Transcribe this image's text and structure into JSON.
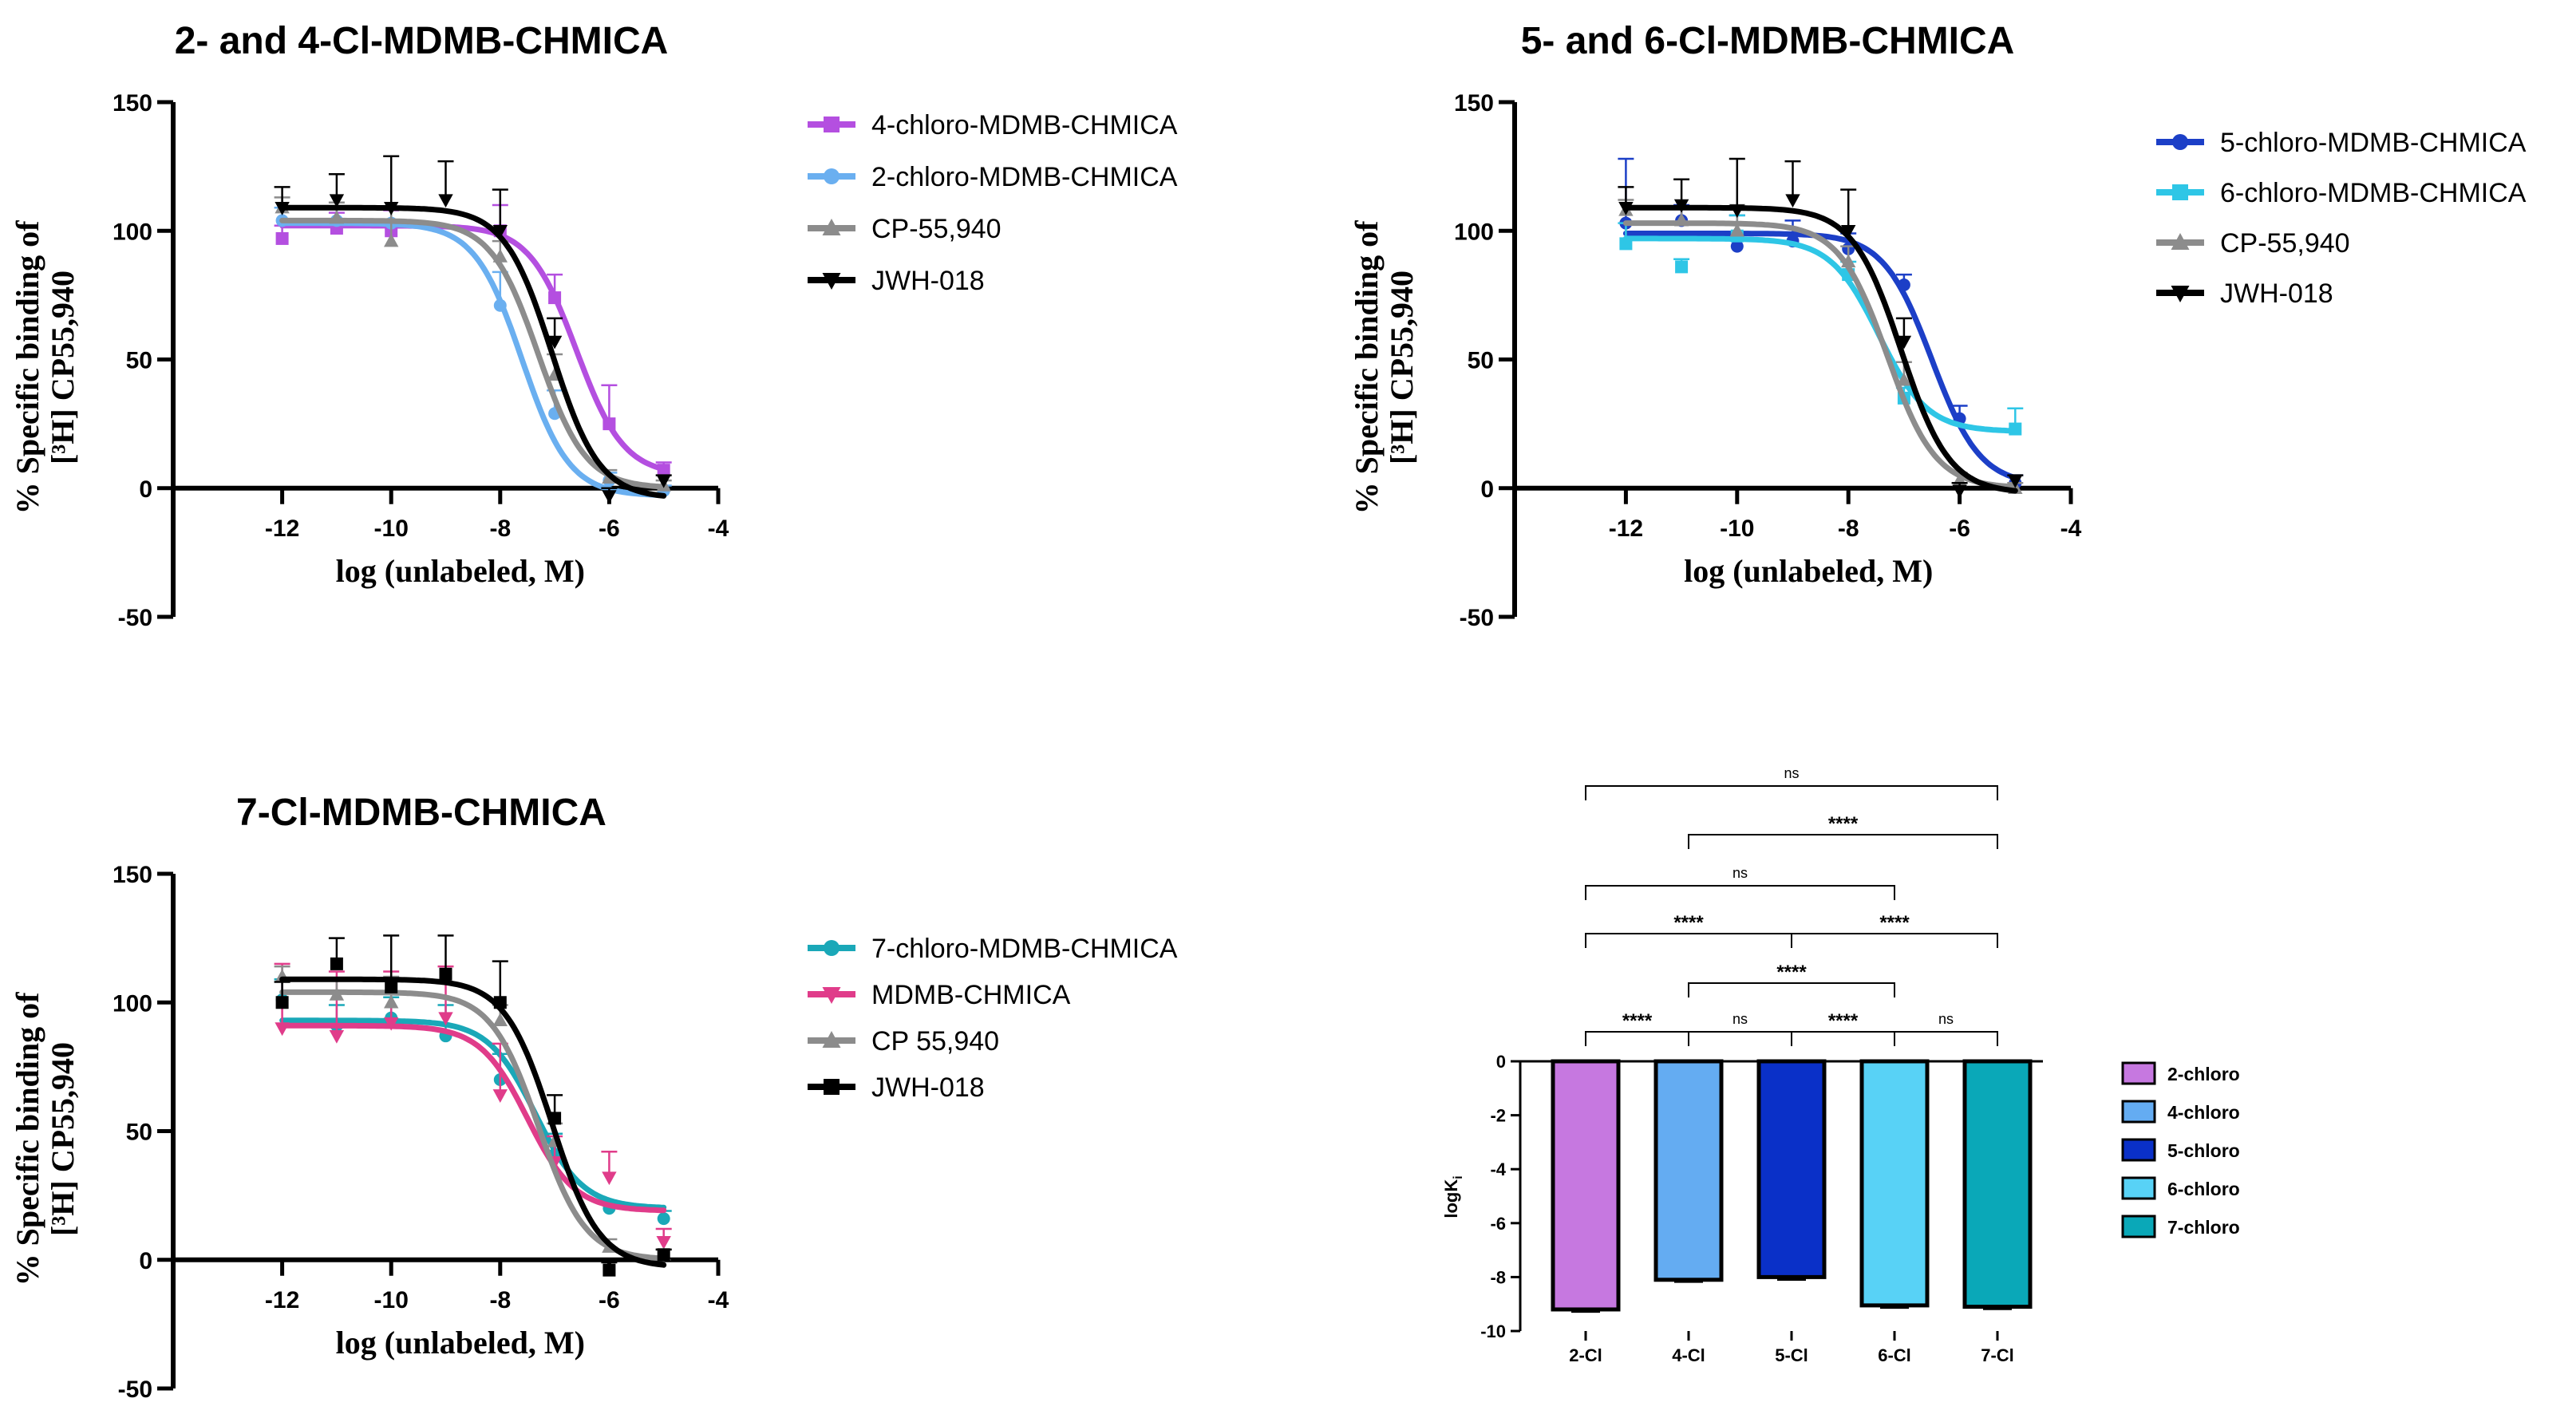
{
  "chart_data": [
    {
      "type": "line",
      "title": "2- and 4-Cl-MDMB-CHMICA",
      "xlabel": "log (unlabeled, M)",
      "ylabel_line1": "% Specific binding of",
      "ylabel_line2": "[³H] CP55,940",
      "xlim": [
        -14,
        -4
      ],
      "ylim": [
        -50,
        150
      ],
      "xticks": [
        -12,
        -10,
        -8,
        -6,
        -4
      ],
      "yticks": [
        150,
        100,
        50,
        0,
        -50
      ],
      "series": [
        {
          "name": "4-chloro-MDMB-CHMICA",
          "color": "#b44fe0",
          "marker": "square",
          "top": 102,
          "bottom": 5,
          "logec50": -6.6,
          "points": [
            {
              "x": -12,
              "y": 97,
              "err": 5
            },
            {
              "x": -11,
              "y": 101,
              "err": 6
            },
            {
              "x": -10,
              "y": 100,
              "err": 8
            },
            {
              "x": -8,
              "y": 100,
              "err": 10
            },
            {
              "x": -7,
              "y": 74,
              "err": 9
            },
            {
              "x": -6,
              "y": 25,
              "err": 15
            },
            {
              "x": -5,
              "y": 7,
              "err": 3
            }
          ]
        },
        {
          "name": "2-chloro-MDMB-CHMICA",
          "color": "#6aaff0",
          "marker": "circle",
          "top": 103,
          "bottom": -3,
          "logec50": -7.6,
          "points": [
            {
              "x": -12,
              "y": 104,
              "err": 5
            },
            {
              "x": -11,
              "y": 104,
              "err": 5
            },
            {
              "x": -10,
              "y": 103,
              "err": 6
            },
            {
              "x": -8,
              "y": 71,
              "err": 13
            },
            {
              "x": -7,
              "y": 29,
              "err": 9
            },
            {
              "x": -6,
              "y": 3,
              "err": 3
            },
            {
              "x": -5,
              "y": -1,
              "err": 2
            }
          ]
        },
        {
          "name": "CP-55,940",
          "color": "#8c8c8c",
          "marker": "triangle-up",
          "top": 104,
          "bottom": 0,
          "logec50": -7.3,
          "points": [
            {
              "x": -12,
              "y": 109,
              "err": 4
            },
            {
              "x": -11,
              "y": 105,
              "err": 6
            },
            {
              "x": -10,
              "y": 96,
              "err": 13
            },
            {
              "x": -8,
              "y": 90,
              "err": 6
            },
            {
              "x": -7,
              "y": 44,
              "err": 8
            },
            {
              "x": -6,
              "y": 4,
              "err": 3
            },
            {
              "x": -5,
              "y": 1,
              "err": 2
            }
          ]
        },
        {
          "name": "JWH-018",
          "color": "#000000",
          "marker": "triangle-down",
          "top": 109,
          "bottom": -4,
          "logec50": -7.05,
          "points": [
            {
              "x": -12,
              "y": 109,
              "err": 8
            },
            {
              "x": -11,
              "y": 112,
              "err": 10
            },
            {
              "x": -10,
              "y": 109,
              "err": 20
            },
            {
              "x": -9,
              "y": 112,
              "err": 15
            },
            {
              "x": -8,
              "y": 100,
              "err": 16
            },
            {
              "x": -7,
              "y": 57,
              "err": 9
            },
            {
              "x": -6,
              "y": -3,
              "err": 3
            },
            {
              "x": -5,
              "y": 3,
              "err": 2
            }
          ]
        }
      ]
    },
    {
      "type": "line",
      "title": "5- and 6-Cl-MDMB-CHMICA",
      "xlabel": "log (unlabeled, M)",
      "ylabel_line1": "% Specific binding of",
      "ylabel_line2": "[³H] CP55,940",
      "xlim": [
        -14,
        -4
      ],
      "ylim": [
        -50,
        150
      ],
      "xticks": [
        -12,
        -10,
        -8,
        -6,
        -4
      ],
      "yticks": [
        150,
        100,
        50,
        0,
        -50
      ],
      "series": [
        {
          "name": "5-chloro-MDMB-CHMICA",
          "color": "#1c3fc7",
          "marker": "circle",
          "top": 99,
          "bottom": 1,
          "logec50": -6.5,
          "points": [
            {
              "x": -12,
              "y": 103,
              "err": 25
            },
            {
              "x": -11,
              "y": 104,
              "err": 6
            },
            {
              "x": -10,
              "y": 94,
              "err": 12
            },
            {
              "x": -9,
              "y": 96,
              "err": 8
            },
            {
              "x": -8,
              "y": 93,
              "err": 6
            },
            {
              "x": -7,
              "y": 79,
              "err": 4
            },
            {
              "x": -6,
              "y": 27,
              "err": 5
            },
            {
              "x": -5,
              "y": 2,
              "err": 3
            }
          ]
        },
        {
          "name": "6-chloro-MDMB-CHMICA",
          "color": "#2ec6e6",
          "marker": "square",
          "top": 97,
          "bottom": 22,
          "logec50": -7.45,
          "points": [
            {
              "x": -12,
              "y": 95,
              "err": 8
            },
            {
              "x": -11,
              "y": 86,
              "err": 3
            },
            {
              "x": -10,
              "y": 98,
              "err": 8
            },
            {
              "x": -8,
              "y": 83,
              "err": 5
            },
            {
              "x": -7,
              "y": 35,
              "err": 4
            },
            {
              "x": -5,
              "y": 23,
              "err": 8
            }
          ]
        },
        {
          "name": "CP-55,940",
          "color": "#8c8c8c",
          "marker": "triangle-up",
          "top": 103,
          "bottom": 0,
          "logec50": -7.3,
          "points": [
            {
              "x": -12,
              "y": 108,
              "err": 4
            },
            {
              "x": -11,
              "y": 104,
              "err": 5
            },
            {
              "x": -10,
              "y": 100,
              "err": 10
            },
            {
              "x": -8,
              "y": 88,
              "err": 6
            },
            {
              "x": -7,
              "y": 42,
              "err": 7
            },
            {
              "x": -6,
              "y": 3,
              "err": 3
            },
            {
              "x": -5,
              "y": 0,
              "err": 2
            }
          ]
        },
        {
          "name": "JWH-018",
          "color": "#000000",
          "marker": "triangle-down",
          "top": 109,
          "bottom": -2,
          "logec50": -7.05,
          "points": [
            {
              "x": -12,
              "y": 109,
              "err": 8
            },
            {
              "x": -11,
              "y": 110,
              "err": 10
            },
            {
              "x": -10,
              "y": 108,
              "err": 20
            },
            {
              "x": -9,
              "y": 112,
              "err": 15
            },
            {
              "x": -8,
              "y": 100,
              "err": 16
            },
            {
              "x": -7,
              "y": 57,
              "err": 9
            },
            {
              "x": -6,
              "y": -1,
              "err": 3
            },
            {
              "x": -5,
              "y": 3,
              "err": 2
            }
          ]
        }
      ]
    },
    {
      "type": "line",
      "title": "7-Cl-MDMB-CHMICA",
      "xlabel": "log (unlabeled, M)",
      "ylabel_line1": "% Specific binding of",
      "ylabel_line2": "[³H] CP55,940",
      "xlim": [
        -14,
        -4
      ],
      "ylim": [
        -50,
        150
      ],
      "xticks": [
        -12,
        -10,
        -8,
        -6,
        -4
      ],
      "yticks": [
        150,
        100,
        50,
        0,
        -50
      ],
      "series": [
        {
          "name": "7-chloro-MDMB-CHMICA",
          "color": "#1aa8b8",
          "marker": "circle",
          "top": 93,
          "bottom": 20,
          "logec50": -7.35,
          "points": [
            {
              "x": -12,
              "y": 101,
              "err": 8
            },
            {
              "x": -11,
              "y": 91,
              "err": 8
            },
            {
              "x": -10,
              "y": 94,
              "err": 8
            },
            {
              "x": -9,
              "y": 87,
              "err": 12
            },
            {
              "x": -8,
              "y": 70,
              "err": 10
            },
            {
              "x": -7,
              "y": 41,
              "err": 8
            },
            {
              "x": -6,
              "y": 20,
              "err": 3
            },
            {
              "x": -5,
              "y": 16,
              "err": 3
            }
          ]
        },
        {
          "name": "MDMB-CHMICA",
          "color": "#e03c8a",
          "marker": "triangle-down",
          "top": 91,
          "bottom": 19,
          "logec50": -7.5,
          "points": [
            {
              "x": -12,
              "y": 90,
              "err": 25
            },
            {
              "x": -11,
              "y": 87,
              "err": 25
            },
            {
              "x": -10,
              "y": 92,
              "err": 20
            },
            {
              "x": -9,
              "y": 94,
              "err": 20
            },
            {
              "x": -8,
              "y": 64,
              "err": 20
            },
            {
              "x": -7,
              "y": 38,
              "err": 10
            },
            {
              "x": -6,
              "y": 32,
              "err": 10
            },
            {
              "x": -5,
              "y": 7,
              "err": 5
            }
          ]
        },
        {
          "name": "CP 55,940",
          "color": "#8c8c8c",
          "marker": "triangle-up",
          "top": 104,
          "bottom": 0,
          "logec50": -7.3,
          "points": [
            {
              "x": -12,
              "y": 110,
              "err": 4
            },
            {
              "x": -11,
              "y": 103,
              "err": 6
            },
            {
              "x": -10,
              "y": 100,
              "err": 10
            },
            {
              "x": -8,
              "y": 93,
              "err": 6
            },
            {
              "x": -7,
              "y": 46,
              "err": 7
            },
            {
              "x": -6,
              "y": 5,
              "err": 3
            },
            {
              "x": -5,
              "y": 2,
              "err": 2
            }
          ]
        },
        {
          "name": "JWH-018",
          "color": "#000000",
          "marker": "square",
          "top": 109,
          "bottom": -3,
          "logec50": -7.05,
          "points": [
            {
              "x": -12,
              "y": 100,
              "err": 8
            },
            {
              "x": -11,
              "y": 115,
              "err": 10
            },
            {
              "x": -10,
              "y": 106,
              "err": 20
            },
            {
              "x": -9,
              "y": 111,
              "err": 15
            },
            {
              "x": -8,
              "y": 100,
              "err": 16
            },
            {
              "x": -7,
              "y": 55,
              "err": 9
            },
            {
              "x": -6,
              "y": -4,
              "err": 3
            },
            {
              "x": -5,
              "y": 2,
              "err": 2
            }
          ]
        }
      ]
    },
    {
      "type": "bar",
      "title": "",
      "xlabel": "",
      "ylabel": "logK",
      "ylabel_sub": "i",
      "ylim": [
        -10,
        0
      ],
      "yticks": [
        0,
        -2,
        -4,
        -6,
        -8,
        -10
      ],
      "categories": [
        "2-Cl",
        "4-Cl",
        "5-Cl",
        "6-Cl",
        "7-Cl"
      ],
      "legend": [
        "2-chloro",
        "4-chloro",
        "5-chloro",
        "6-chloro",
        "7-chloro"
      ],
      "values": [
        -9.2,
        -8.1,
        -8.0,
        -9.05,
        -9.1
      ],
      "errors": [
        0.08,
        0.07,
        0.09,
        0.08,
        0.08
      ],
      "colors": [
        "#c678e0",
        "#64acf2",
        "#0a30c8",
        "#58d2f6",
        "#0aa8b8"
      ],
      "comparisons": [
        {
          "a": 0,
          "b": 1,
          "label": "****"
        },
        {
          "a": 1,
          "b": 2,
          "label": "ns"
        },
        {
          "a": 2,
          "b": 3,
          "label": "****"
        },
        {
          "a": 3,
          "b": 4,
          "label": "ns"
        },
        {
          "a": 1,
          "b": 3,
          "label": "****"
        },
        {
          "a": 0,
          "b": 2,
          "label": "****"
        },
        {
          "a": 2,
          "b": 4,
          "label": "****"
        },
        {
          "a": 0,
          "b": 3,
          "label": "ns"
        },
        {
          "a": 1,
          "b": 4,
          "label": "****"
        },
        {
          "a": 0,
          "b": 4,
          "label": "ns"
        }
      ]
    }
  ]
}
